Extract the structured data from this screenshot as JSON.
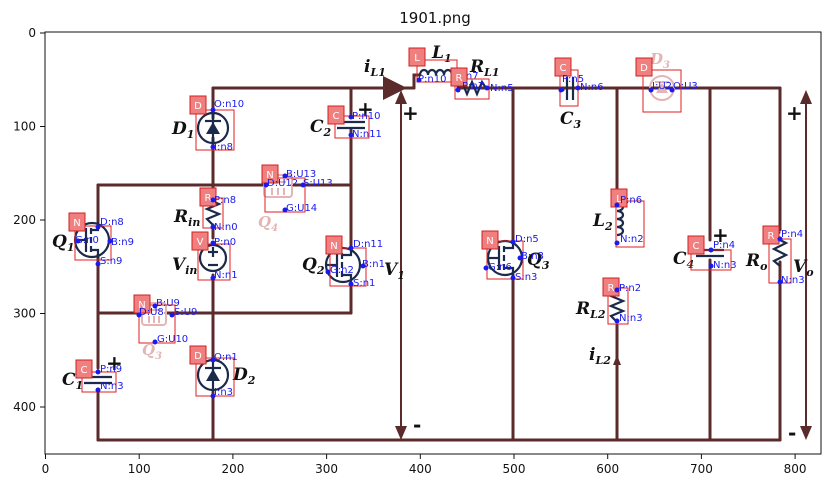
{
  "plot_title": "1901.png",
  "x_ticks": [
    "0",
    "100",
    "200",
    "300",
    "400",
    "500",
    "600",
    "700",
    "800"
  ],
  "y_ticks": [
    "0",
    "100",
    "200",
    "300",
    "400"
  ],
  "colors": {
    "wire": "#5b2b2b",
    "component": "#1b2a4a",
    "bbox": "#e21f1f",
    "pin": "#1a1aee",
    "tag": "#f08080"
  },
  "labels": {
    "D1": "D",
    "D1_sub": "1",
    "D2": "D",
    "D2_sub": "2",
    "C2": "C",
    "C2_sub": "2",
    "C1": "C",
    "C1_sub": "1",
    "C3": "C",
    "C3_sub": "3",
    "C4": "C",
    "C4_sub": "4",
    "Rin": "R",
    "Rin_sub": "in",
    "Vin": "V",
    "Vin_sub": "in",
    "Q1": "Q",
    "Q1_sub": "1",
    "Q2": "Q",
    "Q2_sub": "2",
    "Q3": "Q",
    "Q3_sub": "3",
    "Q3_ghost": "Q",
    "Q3_ghost_sub": "3",
    "Q4": "Q",
    "Q4_sub": "4",
    "D3": "D",
    "D3_sub": "3",
    "L1": "L",
    "L1_sub": "1",
    "L2": "L",
    "L2_sub": "2",
    "RL1": "R",
    "RL1_sub": "L1",
    "RL2": "R",
    "RL2_sub": "L2",
    "iL1": "i",
    "iL1_sub": "L1",
    "iL2": "i",
    "iL2_sub": "L2",
    "V1": "V",
    "V1_sub": "1",
    "Ro": "R",
    "Ro_sub": "o",
    "Vo": "V",
    "Vo_sub": "o",
    "plus": "+",
    "minus": "-"
  },
  "annotations": [
    {
      "id": "D1",
      "tag": "D",
      "pins": [
        "O:n10",
        "I:n8"
      ]
    },
    {
      "id": "C2",
      "tag": "C",
      "pins": [
        "P:n10",
        "N:n11"
      ]
    },
    {
      "id": "Q4",
      "tag": "N",
      "pins": [
        "B:U13",
        "D:U12",
        "S:U13",
        "G:U14"
      ]
    },
    {
      "id": "Rin",
      "tag": "R",
      "pins": [
        "P:n8",
        "N:n0"
      ]
    },
    {
      "id": "Q1",
      "tag": "N",
      "pins": [
        "D:n8",
        "G:n0",
        "B:n9",
        "S:n9"
      ]
    },
    {
      "id": "Vin",
      "tag": "V",
      "pins": [
        "P:n0",
        "N:n1"
      ]
    },
    {
      "id": "Q2",
      "tag": "N",
      "pins": [
        "D:n11",
        "G:n2",
        "B:n1",
        "S:n1"
      ]
    },
    {
      "id": "Q3g",
      "tag": "N",
      "pins": [
        "B:U9",
        "D:U8",
        "S:U9",
        "G:U10"
      ]
    },
    {
      "id": "C1",
      "tag": "C",
      "pins": [
        "P:n9",
        "N:n3"
      ]
    },
    {
      "id": "D2",
      "tag": "D",
      "pins": [
        "O:n1",
        "I:n3"
      ]
    },
    {
      "id": "L1",
      "tag": "L",
      "pins": [
        "P:n10",
        "N:n7"
      ]
    },
    {
      "id": "RL1",
      "tag": "R",
      "pins": [
        "P:n7",
        "N:n5"
      ]
    },
    {
      "id": "C3",
      "tag": "C",
      "pins": [
        "P:n5",
        "N:n6"
      ]
    },
    {
      "id": "D3",
      "tag": "D",
      "pins": [
        "I:U2",
        "O:U3"
      ]
    },
    {
      "id": "Q3",
      "tag": "N",
      "pins": [
        "D:n5",
        "G:n6",
        "B:n3",
        "S:n3"
      ]
    },
    {
      "id": "L2",
      "tag": "L",
      "pins": [
        "P:n6",
        "N:n2"
      ]
    },
    {
      "id": "RL2",
      "tag": "R",
      "pins": [
        "P:n2",
        "N:n3"
      ]
    },
    {
      "id": "C4",
      "tag": "C",
      "pins": [
        "P:n4",
        "N:n3"
      ]
    },
    {
      "id": "Ro",
      "tag": "R",
      "pins": [
        "P:n4",
        "N:n3"
      ]
    }
  ]
}
